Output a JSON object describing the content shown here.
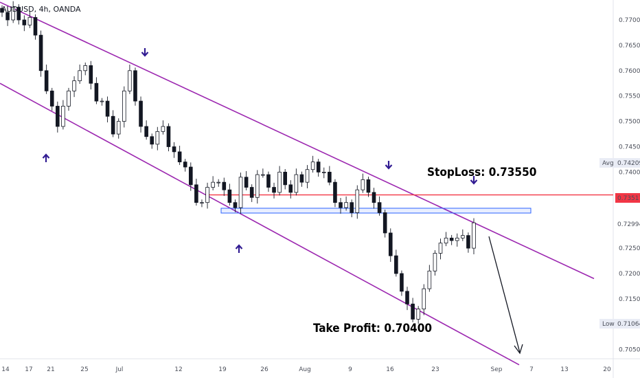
{
  "header": {
    "symbol": "AUDUSD",
    "interval": "4h",
    "broker": "OANDA"
  },
  "chart_data": {
    "type": "candlestick",
    "yticks": [
      0.705,
      0.71,
      0.715,
      0.72,
      0.725,
      0.73,
      0.735,
      0.74,
      0.745,
      0.75,
      0.755,
      0.76,
      0.765,
      0.77
    ],
    "ylim": [
      0.7035,
      0.7735
    ],
    "xticks": [
      "14",
      "17",
      "21",
      "25",
      "Jul",
      "12",
      "19",
      "26",
      "Aug",
      "9",
      "16",
      "23",
      "Sep",
      "7",
      "13",
      "20"
    ],
    "price_labels": {
      "avg": {
        "label": "Avg",
        "value": "0.74209",
        "color": "#e9ecf5"
      },
      "current": {
        "label": "",
        "value": "0.73517",
        "color": "#f23645"
      },
      "last": {
        "label": "",
        "value": "0.72994",
        "color": "#ffffff"
      },
      "low": {
        "label": "Low",
        "value": "0.71064",
        "color": "#e9ecf5"
      }
    },
    "series": [
      {
        "close": [
          0.7715,
          0.77,
          0.7725,
          0.77,
          0.769,
          0.7705,
          0.767,
          0.76,
          0.756,
          0.753,
          0.749,
          0.753,
          0.756,
          0.758,
          0.76,
          0.761,
          0.7575,
          0.754,
          0.754,
          0.751,
          0.7475,
          0.75,
          0.756,
          0.76,
          0.754,
          0.749,
          0.747,
          0.7455,
          0.748,
          0.749,
          0.745,
          0.744,
          0.742,
          0.741,
          0.7375,
          0.734,
          0.734,
          0.737,
          0.738,
          0.738,
          0.7365,
          0.734,
          0.733,
          0.739,
          0.737,
          0.735,
          0.7395,
          0.7395,
          0.737,
          0.736,
          0.74,
          0.7375,
          0.736,
          0.7395,
          0.738,
          0.7405,
          0.742,
          0.74,
          0.74,
          0.738,
          0.734,
          0.733,
          0.734,
          0.732,
          0.7365,
          0.7385,
          0.736,
          0.734,
          0.732,
          0.728,
          0.7235,
          0.72,
          0.7165,
          0.714,
          0.711,
          0.713,
          0.717,
          0.7205,
          0.724,
          0.726,
          0.727,
          0.7265,
          0.727,
          0.7275,
          0.725,
          0.73
        ],
        "name": ""
      }
    ],
    "lines": [
      {
        "name": "",
        "values": [
          0.7735,
          0.719
        ]
      },
      {
        "name": "",
        "values": [
          0.7575,
          0.702
        ]
      },
      {
        "name": "",
        "values": [
          0.7355
        ]
      }
    ],
    "annotations": [
      {
        "text": "StopLoss: 0.73550",
        "color": "#f23645"
      },
      {
        "text": "Take Profit: 0.70400",
        "color": "#2962ff"
      }
    ],
    "colors": {
      "channel": "#9c27b0",
      "stoploss": "#f23645",
      "zone": "#2962ff",
      "arrow": "#311b92",
      "candle": "#131722"
    }
  }
}
